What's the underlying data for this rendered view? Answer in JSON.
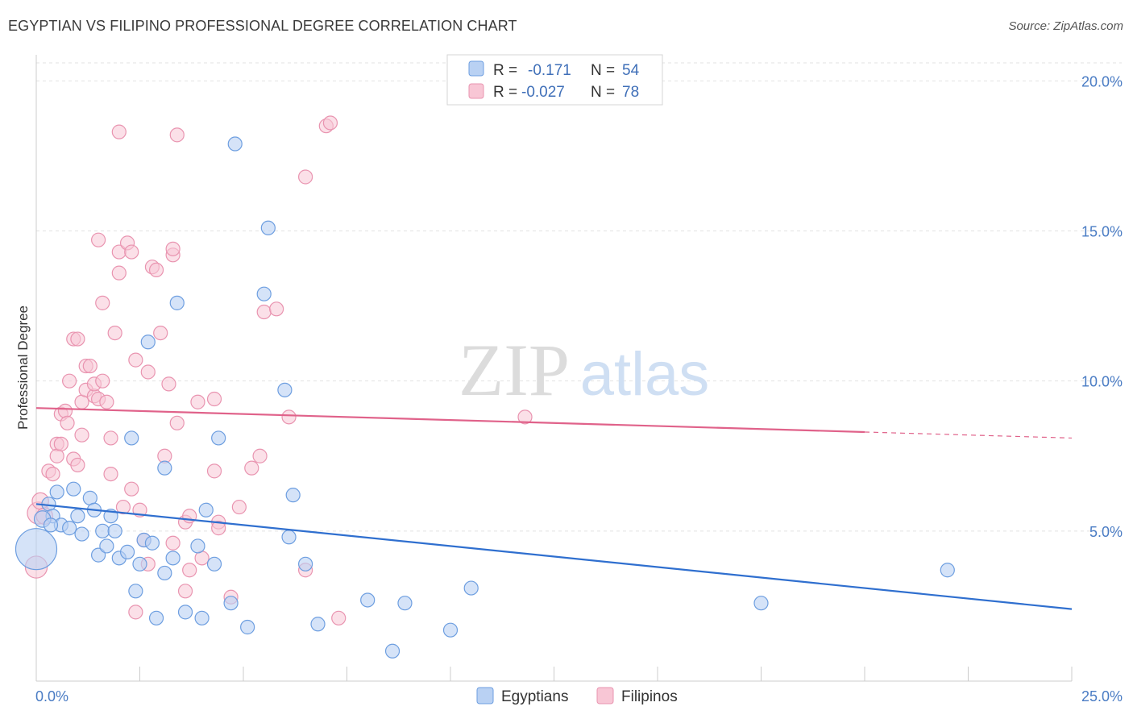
{
  "title": "EGYPTIAN VS FILIPINO PROFESSIONAL DEGREE CORRELATION CHART",
  "source": "Source: ZipAtlas.com",
  "watermark": {
    "zip": "ZIP",
    "atlas": "atlas"
  },
  "colors": {
    "egyptians_fill": "#b9d1f3",
    "egyptians_stroke": "#6d9ee0",
    "egyptians_line": "#2f6fcf",
    "filipinos_fill": "#f8c6d5",
    "filipinos_stroke": "#e994b0",
    "filipinos_line": "#e0628a",
    "tick": "#4a7cc4",
    "grid": "#e2e2e2"
  },
  "legend": {
    "rows": [
      {
        "r_label": "R =",
        "r_value": "-0.171",
        "n_label": "N =",
        "n_value": "54"
      },
      {
        "r_label": "R =",
        "r_value": "-0.027",
        "n_label": "N =",
        "n_value": "78"
      }
    ]
  },
  "bottom_legend": [
    "Egyptians",
    "Filipinos"
  ],
  "chart_data": {
    "type": "scatter",
    "title": "EGYPTIAN VS FILIPINO PROFESSIONAL DEGREE CORRELATION CHART",
    "xlabel": "",
    "ylabel": "Professional Degree",
    "xlim": [
      0,
      25
    ],
    "ylim": [
      0,
      20.6
    ],
    "x_tick_labels": [
      "0.0%",
      "25.0%"
    ],
    "y_ticks": [
      5,
      10,
      15,
      20
    ],
    "y_tick_labels": [
      "5.0%",
      "10.0%",
      "15.0%",
      "20.0%"
    ],
    "grid": true,
    "legend_position": "top-center",
    "series": [
      {
        "name": "Egyptians",
        "R": -0.171,
        "N": 54,
        "trend": {
          "x": [
            0,
            25
          ],
          "y": [
            5.9,
            2.4
          ]
        },
        "points": [
          [
            0.0,
            4.4,
            30
          ],
          [
            0.3,
            5.9,
            10
          ],
          [
            0.4,
            5.5,
            10
          ],
          [
            0.5,
            6.3,
            10
          ],
          [
            0.6,
            5.2,
            10
          ],
          [
            0.8,
            5.1,
            10
          ],
          [
            0.9,
            6.4,
            10
          ],
          [
            1.0,
            5.5,
            10
          ],
          [
            1.1,
            4.9,
            10
          ],
          [
            1.3,
            6.1,
            10
          ],
          [
            1.4,
            5.7,
            10
          ],
          [
            1.5,
            4.2,
            10
          ],
          [
            1.6,
            5.0,
            10
          ],
          [
            1.7,
            4.5,
            10
          ],
          [
            1.8,
            5.5,
            10
          ],
          [
            1.9,
            5.0,
            10
          ],
          [
            2.0,
            4.1,
            10
          ],
          [
            2.2,
            4.3,
            10
          ],
          [
            2.3,
            8.1,
            10
          ],
          [
            2.4,
            3.0,
            10
          ],
          [
            2.5,
            3.9,
            10
          ],
          [
            2.6,
            4.7,
            10
          ],
          [
            2.7,
            11.3,
            10
          ],
          [
            2.8,
            4.6,
            10
          ],
          [
            2.9,
            2.1,
            10
          ],
          [
            3.1,
            7.1,
            10
          ],
          [
            3.1,
            3.6,
            10
          ],
          [
            3.3,
            4.1,
            10
          ],
          [
            3.4,
            12.6,
            10
          ],
          [
            3.6,
            2.3,
            10
          ],
          [
            3.9,
            4.5,
            10
          ],
          [
            4.0,
            2.1,
            10
          ],
          [
            4.1,
            5.7,
            10
          ],
          [
            4.3,
            3.9,
            10
          ],
          [
            4.4,
            8.1,
            10
          ],
          [
            4.7,
            2.6,
            10
          ],
          [
            4.8,
            17.9,
            10
          ],
          [
            5.1,
            1.8,
            10
          ],
          [
            5.5,
            12.9,
            10
          ],
          [
            5.6,
            15.1,
            10
          ],
          [
            6.0,
            9.7,
            10
          ],
          [
            6.1,
            4.8,
            10
          ],
          [
            6.2,
            6.2,
            10
          ],
          [
            6.5,
            3.9,
            10
          ],
          [
            6.8,
            1.9,
            10
          ],
          [
            8.0,
            2.7,
            10
          ],
          [
            8.6,
            1.0,
            10
          ],
          [
            8.9,
            2.6,
            10
          ],
          [
            10.0,
            1.7,
            10
          ],
          [
            10.5,
            3.1,
            10
          ],
          [
            17.5,
            2.6,
            10
          ],
          [
            22.0,
            3.7,
            10
          ],
          [
            0.15,
            5.4,
            12
          ],
          [
            0.35,
            5.2,
            10
          ]
        ]
      },
      {
        "name": "Filipinos",
        "R": -0.027,
        "N": 78,
        "trend": {
          "x": [
            0,
            20,
            25
          ],
          "y": [
            9.1,
            8.3,
            8.1
          ],
          "solid_until": 20
        },
        "points": [
          [
            0.0,
            3.8,
            16
          ],
          [
            0.05,
            5.6,
            16
          ],
          [
            0.1,
            6.0,
            12
          ],
          [
            0.2,
            5.5,
            12
          ],
          [
            0.3,
            7.0,
            10
          ],
          [
            0.4,
            6.9,
            10
          ],
          [
            0.5,
            7.9,
            10
          ],
          [
            0.5,
            7.5,
            10
          ],
          [
            0.6,
            7.9,
            10
          ],
          [
            0.6,
            8.9,
            10
          ],
          [
            0.7,
            9.0,
            10
          ],
          [
            0.75,
            8.6,
            10
          ],
          [
            0.8,
            10.0,
            10
          ],
          [
            0.9,
            7.4,
            10
          ],
          [
            0.9,
            11.4,
            10
          ],
          [
            1.0,
            7.2,
            10
          ],
          [
            1.0,
            11.4,
            10
          ],
          [
            1.1,
            8.2,
            10
          ],
          [
            1.1,
            9.3,
            10
          ],
          [
            1.2,
            9.7,
            10
          ],
          [
            1.2,
            10.5,
            10
          ],
          [
            1.3,
            10.5,
            10
          ],
          [
            1.4,
            9.5,
            10
          ],
          [
            1.4,
            9.9,
            10
          ],
          [
            1.5,
            14.7,
            10
          ],
          [
            1.5,
            9.4,
            10
          ],
          [
            1.6,
            10.0,
            10
          ],
          [
            1.6,
            12.6,
            10
          ],
          [
            1.7,
            9.3,
            10
          ],
          [
            1.8,
            6.9,
            10
          ],
          [
            1.8,
            8.1,
            10
          ],
          [
            1.9,
            11.6,
            10
          ],
          [
            2.0,
            13.6,
            10
          ],
          [
            2.0,
            18.3,
            10
          ],
          [
            2.0,
            14.3,
            10
          ],
          [
            2.1,
            5.8,
            10
          ],
          [
            2.2,
            14.6,
            10
          ],
          [
            2.3,
            6.4,
            10
          ],
          [
            2.3,
            14.3,
            10
          ],
          [
            2.4,
            10.7,
            10
          ],
          [
            2.4,
            2.3,
            10
          ],
          [
            2.5,
            5.7,
            10
          ],
          [
            2.6,
            4.7,
            10
          ],
          [
            2.7,
            10.3,
            10
          ],
          [
            2.7,
            3.9,
            10
          ],
          [
            2.8,
            13.8,
            10
          ],
          [
            2.9,
            13.7,
            10
          ],
          [
            3.0,
            11.6,
            10
          ],
          [
            3.1,
            7.5,
            10
          ],
          [
            3.2,
            9.9,
            10
          ],
          [
            3.3,
            14.2,
            10
          ],
          [
            3.3,
            14.4,
            10
          ],
          [
            3.3,
            4.6,
            10
          ],
          [
            3.4,
            18.2,
            10
          ],
          [
            3.4,
            8.6,
            10
          ],
          [
            3.6,
            3.0,
            10
          ],
          [
            3.6,
            5.3,
            10
          ],
          [
            3.7,
            3.7,
            10
          ],
          [
            3.7,
            5.5,
            10
          ],
          [
            3.9,
            9.3,
            10
          ],
          [
            4.0,
            4.1,
            10
          ],
          [
            4.3,
            7.0,
            10
          ],
          [
            4.3,
            9.4,
            10
          ],
          [
            4.4,
            5.3,
            10
          ],
          [
            4.4,
            5.1,
            10
          ],
          [
            4.7,
            2.8,
            10
          ],
          [
            4.9,
            5.8,
            10
          ],
          [
            5.2,
            7.1,
            10
          ],
          [
            5.4,
            7.5,
            10
          ],
          [
            5.5,
            12.3,
            10
          ],
          [
            5.8,
            12.4,
            10
          ],
          [
            6.1,
            8.8,
            10
          ],
          [
            6.5,
            3.7,
            10
          ],
          [
            6.5,
            16.8,
            10
          ],
          [
            7.0,
            18.5,
            10
          ],
          [
            7.1,
            18.6,
            10
          ],
          [
            7.3,
            2.1,
            10
          ],
          [
            11.8,
            8.8,
            10
          ]
        ]
      }
    ]
  }
}
